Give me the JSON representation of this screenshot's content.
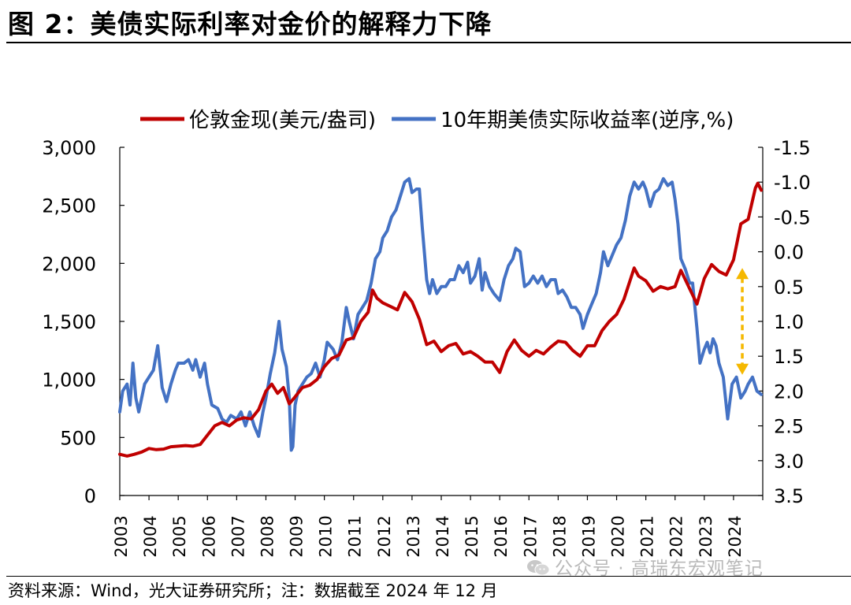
{
  "figure": {
    "title": "图 2：美债实际利率对金价的解释力下降",
    "source": "资料来源：Wind，光大证券研究所；注：数据截至 2024 年 12 月",
    "watermark": "公众号 · 高瑞东宏观笔记",
    "watermark_icon": "wechat-icon"
  },
  "chart_data": {
    "type": "line",
    "title": "",
    "xlabel": "",
    "legend_position": "top",
    "grid": false,
    "x_ticks": [
      "2003",
      "2004",
      "2005",
      "2006",
      "2007",
      "2008",
      "2009",
      "2010",
      "2011",
      "2012",
      "2013",
      "2014",
      "2015",
      "2016",
      "2017",
      "2018",
      "2019",
      "2020",
      "2021",
      "2022",
      "2023",
      "2024"
    ],
    "y_left": {
      "range": [
        0,
        3000
      ],
      "ticks": [
        0,
        500,
        1000,
        1500,
        2000,
        2500,
        3000
      ],
      "tick_labels": [
        "0",
        "500",
        "1,000",
        "1,500",
        "2,000",
        "2,500",
        "3,000"
      ]
    },
    "y_right": {
      "range": [
        -1.5,
        3.5
      ],
      "inverted": true,
      "ticks": [
        -1.5,
        -1.0,
        -0.5,
        0.0,
        0.5,
        1.0,
        1.5,
        2.0,
        2.5,
        3.0,
        3.5
      ],
      "tick_labels": [
        "-1.5",
        "-1.0",
        "-0.5",
        "0.0",
        "0.5",
        "1.0",
        "1.5",
        "2.0",
        "2.5",
        "3.0",
        "3.5"
      ]
    },
    "series": [
      {
        "name": "伦敦金现(美元/盎司)",
        "axis": "left",
        "color": "#c00000",
        "points": [
          [
            2003.0,
            355
          ],
          [
            2003.25,
            340
          ],
          [
            2003.5,
            355
          ],
          [
            2003.75,
            375
          ],
          [
            2004.0,
            405
          ],
          [
            2004.25,
            395
          ],
          [
            2004.5,
            400
          ],
          [
            2004.75,
            420
          ],
          [
            2005.0,
            425
          ],
          [
            2005.25,
            430
          ],
          [
            2005.5,
            425
          ],
          [
            2005.75,
            440
          ],
          [
            2006.0,
            520
          ],
          [
            2006.25,
            600
          ],
          [
            2006.5,
            630
          ],
          [
            2006.75,
            600
          ],
          [
            2007.0,
            650
          ],
          [
            2007.25,
            670
          ],
          [
            2007.5,
            660
          ],
          [
            2007.75,
            740
          ],
          [
            2008.0,
            900
          ],
          [
            2008.2,
            960
          ],
          [
            2008.4,
            880
          ],
          [
            2008.6,
            930
          ],
          [
            2008.8,
            790
          ],
          [
            2009.0,
            850
          ],
          [
            2009.25,
            930
          ],
          [
            2009.5,
            950
          ],
          [
            2009.75,
            1000
          ],
          [
            2010.0,
            1110
          ],
          [
            2010.25,
            1180
          ],
          [
            2010.5,
            1210
          ],
          [
            2010.75,
            1340
          ],
          [
            2011.0,
            1360
          ],
          [
            2011.25,
            1500
          ],
          [
            2011.5,
            1580
          ],
          [
            2011.65,
            1770
          ],
          [
            2011.8,
            1700
          ],
          [
            2012.0,
            1660
          ],
          [
            2012.25,
            1630
          ],
          [
            2012.5,
            1600
          ],
          [
            2012.75,
            1750
          ],
          [
            2013.0,
            1670
          ],
          [
            2013.25,
            1520
          ],
          [
            2013.5,
            1300
          ],
          [
            2013.75,
            1330
          ],
          [
            2014.0,
            1240
          ],
          [
            2014.25,
            1290
          ],
          [
            2014.5,
            1310
          ],
          [
            2014.75,
            1220
          ],
          [
            2015.0,
            1240
          ],
          [
            2015.25,
            1200
          ],
          [
            2015.5,
            1150
          ],
          [
            2015.75,
            1150
          ],
          [
            2016.0,
            1060
          ],
          [
            2016.25,
            1240
          ],
          [
            2016.5,
            1340
          ],
          [
            2016.75,
            1250
          ],
          [
            2017.0,
            1200
          ],
          [
            2017.25,
            1250
          ],
          [
            2017.5,
            1220
          ],
          [
            2017.75,
            1280
          ],
          [
            2018.0,
            1330
          ],
          [
            2018.25,
            1320
          ],
          [
            2018.5,
            1250
          ],
          [
            2018.75,
            1200
          ],
          [
            2019.0,
            1290
          ],
          [
            2019.25,
            1290
          ],
          [
            2019.5,
            1420
          ],
          [
            2019.75,
            1500
          ],
          [
            2020.0,
            1560
          ],
          [
            2020.25,
            1690
          ],
          [
            2020.6,
            1960
          ],
          [
            2020.75,
            1890
          ],
          [
            2021.0,
            1850
          ],
          [
            2021.25,
            1760
          ],
          [
            2021.5,
            1800
          ],
          [
            2021.75,
            1780
          ],
          [
            2022.0,
            1800
          ],
          [
            2022.2,
            1940
          ],
          [
            2022.5,
            1780
          ],
          [
            2022.75,
            1650
          ],
          [
            2023.0,
            1870
          ],
          [
            2023.25,
            1990
          ],
          [
            2023.5,
            1930
          ],
          [
            2023.75,
            1900
          ],
          [
            2024.0,
            2030
          ],
          [
            2024.25,
            2340
          ],
          [
            2024.5,
            2380
          ],
          [
            2024.75,
            2650
          ],
          [
            2024.83,
            2690
          ],
          [
            2024.95,
            2630
          ]
        ]
      },
      {
        "name": "10年期美债实际收益率(逆序,%)",
        "axis": "right",
        "color": "#4472c4",
        "points": [
          [
            2003.0,
            2.3
          ],
          [
            2003.1,
            2.0
          ],
          [
            2003.25,
            1.9
          ],
          [
            2003.35,
            2.2
          ],
          [
            2003.45,
            1.6
          ],
          [
            2003.55,
            2.1
          ],
          [
            2003.65,
            2.3
          ],
          [
            2003.85,
            1.9
          ],
          [
            2004.0,
            1.8
          ],
          [
            2004.15,
            1.7
          ],
          [
            2004.3,
            1.35
          ],
          [
            2004.45,
            1.95
          ],
          [
            2004.6,
            2.15
          ],
          [
            2004.75,
            1.9
          ],
          [
            2004.9,
            1.7
          ],
          [
            2005.0,
            1.6
          ],
          [
            2005.2,
            1.6
          ],
          [
            2005.35,
            1.55
          ],
          [
            2005.5,
            1.7
          ],
          [
            2005.6,
            1.55
          ],
          [
            2005.75,
            1.8
          ],
          [
            2005.9,
            1.6
          ],
          [
            2006.0,
            1.9
          ],
          [
            2006.15,
            2.2
          ],
          [
            2006.35,
            2.25
          ],
          [
            2006.5,
            2.4
          ],
          [
            2006.65,
            2.45
          ],
          [
            2006.8,
            2.35
          ],
          [
            2007.0,
            2.4
          ],
          [
            2007.15,
            2.3
          ],
          [
            2007.3,
            2.5
          ],
          [
            2007.45,
            2.3
          ],
          [
            2007.6,
            2.5
          ],
          [
            2007.75,
            2.65
          ],
          [
            2007.9,
            2.3
          ],
          [
            2008.0,
            2.1
          ],
          [
            2008.15,
            1.75
          ],
          [
            2008.3,
            1.45
          ],
          [
            2008.45,
            1.0
          ],
          [
            2008.55,
            1.4
          ],
          [
            2008.7,
            1.65
          ],
          [
            2008.8,
            2.1
          ],
          [
            2008.87,
            2.85
          ],
          [
            2008.92,
            2.8
          ],
          [
            2009.0,
            2.2
          ],
          [
            2009.1,
            2.0
          ],
          [
            2009.25,
            1.9
          ],
          [
            2009.4,
            1.8
          ],
          [
            2009.55,
            1.75
          ],
          [
            2009.7,
            1.6
          ],
          [
            2009.85,
            1.8
          ],
          [
            2010.0,
            1.55
          ],
          [
            2010.1,
            1.3
          ],
          [
            2010.3,
            1.4
          ],
          [
            2010.45,
            1.55
          ],
          [
            2010.6,
            1.3
          ],
          [
            2010.75,
            0.8
          ],
          [
            2010.85,
            1.0
          ],
          [
            2011.0,
            1.25
          ],
          [
            2011.15,
            0.9
          ],
          [
            2011.3,
            0.8
          ],
          [
            2011.45,
            0.7
          ],
          [
            2011.6,
            0.45
          ],
          [
            2011.75,
            0.1
          ],
          [
            2011.9,
            0.0
          ],
          [
            2012.0,
            -0.2
          ],
          [
            2012.15,
            -0.3
          ],
          [
            2012.3,
            -0.5
          ],
          [
            2012.45,
            -0.6
          ],
          [
            2012.6,
            -0.8
          ],
          [
            2012.75,
            -1.0
          ],
          [
            2012.9,
            -1.05
          ],
          [
            2013.0,
            -0.85
          ],
          [
            2013.15,
            -0.9
          ],
          [
            2013.25,
            -0.9
          ],
          [
            2013.35,
            -0.35
          ],
          [
            2013.5,
            0.4
          ],
          [
            2013.6,
            0.6
          ],
          [
            2013.7,
            0.4
          ],
          [
            2013.85,
            0.6
          ],
          [
            2014.0,
            0.5
          ],
          [
            2014.15,
            0.5
          ],
          [
            2014.3,
            0.4
          ],
          [
            2014.45,
            0.4
          ],
          [
            2014.6,
            0.2
          ],
          [
            2014.75,
            0.3
          ],
          [
            2014.9,
            0.15
          ],
          [
            2015.0,
            0.45
          ],
          [
            2015.15,
            0.35
          ],
          [
            2015.3,
            0.1
          ],
          [
            2015.4,
            0.55
          ],
          [
            2015.5,
            0.3
          ],
          [
            2015.65,
            0.5
          ],
          [
            2015.8,
            0.6
          ],
          [
            2016.0,
            0.7
          ],
          [
            2016.15,
            0.4
          ],
          [
            2016.3,
            0.2
          ],
          [
            2016.45,
            0.1
          ],
          [
            2016.55,
            -0.05
          ],
          [
            2016.7,
            0.0
          ],
          [
            2016.85,
            0.5
          ],
          [
            2017.0,
            0.45
          ],
          [
            2017.15,
            0.35
          ],
          [
            2017.3,
            0.45
          ],
          [
            2017.45,
            0.35
          ],
          [
            2017.6,
            0.5
          ],
          [
            2017.75,
            0.4
          ],
          [
            2017.9,
            0.4
          ],
          [
            2018.0,
            0.6
          ],
          [
            2018.15,
            0.55
          ],
          [
            2018.3,
            0.65
          ],
          [
            2018.45,
            0.8
          ],
          [
            2018.6,
            0.8
          ],
          [
            2018.75,
            0.9
          ],
          [
            2018.85,
            1.1
          ],
          [
            2019.0,
            0.9
          ],
          [
            2019.15,
            0.75
          ],
          [
            2019.3,
            0.6
          ],
          [
            2019.45,
            0.3
          ],
          [
            2019.55,
            0.0
          ],
          [
            2019.7,
            0.2
          ],
          [
            2019.85,
            0.05
          ],
          [
            2020.0,
            -0.1
          ],
          [
            2020.15,
            -0.2
          ],
          [
            2020.3,
            -0.45
          ],
          [
            2020.45,
            -0.8
          ],
          [
            2020.6,
            -1.0
          ],
          [
            2020.75,
            -0.9
          ],
          [
            2020.9,
            -1.0
          ],
          [
            2021.0,
            -0.9
          ],
          [
            2021.15,
            -0.65
          ],
          [
            2021.3,
            -0.85
          ],
          [
            2021.45,
            -0.9
          ],
          [
            2021.6,
            -1.05
          ],
          [
            2021.75,
            -0.95
          ],
          [
            2021.9,
            -1.0
          ],
          [
            2022.0,
            -0.75
          ],
          [
            2022.1,
            -0.4
          ],
          [
            2022.2,
            0.1
          ],
          [
            2022.35,
            0.25
          ],
          [
            2022.5,
            0.45
          ],
          [
            2022.6,
            0.45
          ],
          [
            2022.75,
            1.1
          ],
          [
            2022.85,
            1.6
          ],
          [
            2023.0,
            1.4
          ],
          [
            2023.1,
            1.3
          ],
          [
            2023.2,
            1.45
          ],
          [
            2023.3,
            1.25
          ],
          [
            2023.4,
            1.35
          ],
          [
            2023.5,
            1.6
          ],
          [
            2023.65,
            1.8
          ],
          [
            2023.8,
            2.4
          ],
          [
            2023.95,
            1.9
          ],
          [
            2024.1,
            1.8
          ],
          [
            2024.25,
            2.1
          ],
          [
            2024.4,
            2.0
          ],
          [
            2024.5,
            1.9
          ],
          [
            2024.65,
            1.8
          ],
          [
            2024.8,
            2.0
          ],
          [
            2024.95,
            2.05
          ]
        ]
      }
    ],
    "annotation": {
      "type": "double-arrow",
      "color": "#f5b800",
      "x": 2024.3,
      "y_left_from": 1960,
      "y_left_to": 1040
    }
  }
}
